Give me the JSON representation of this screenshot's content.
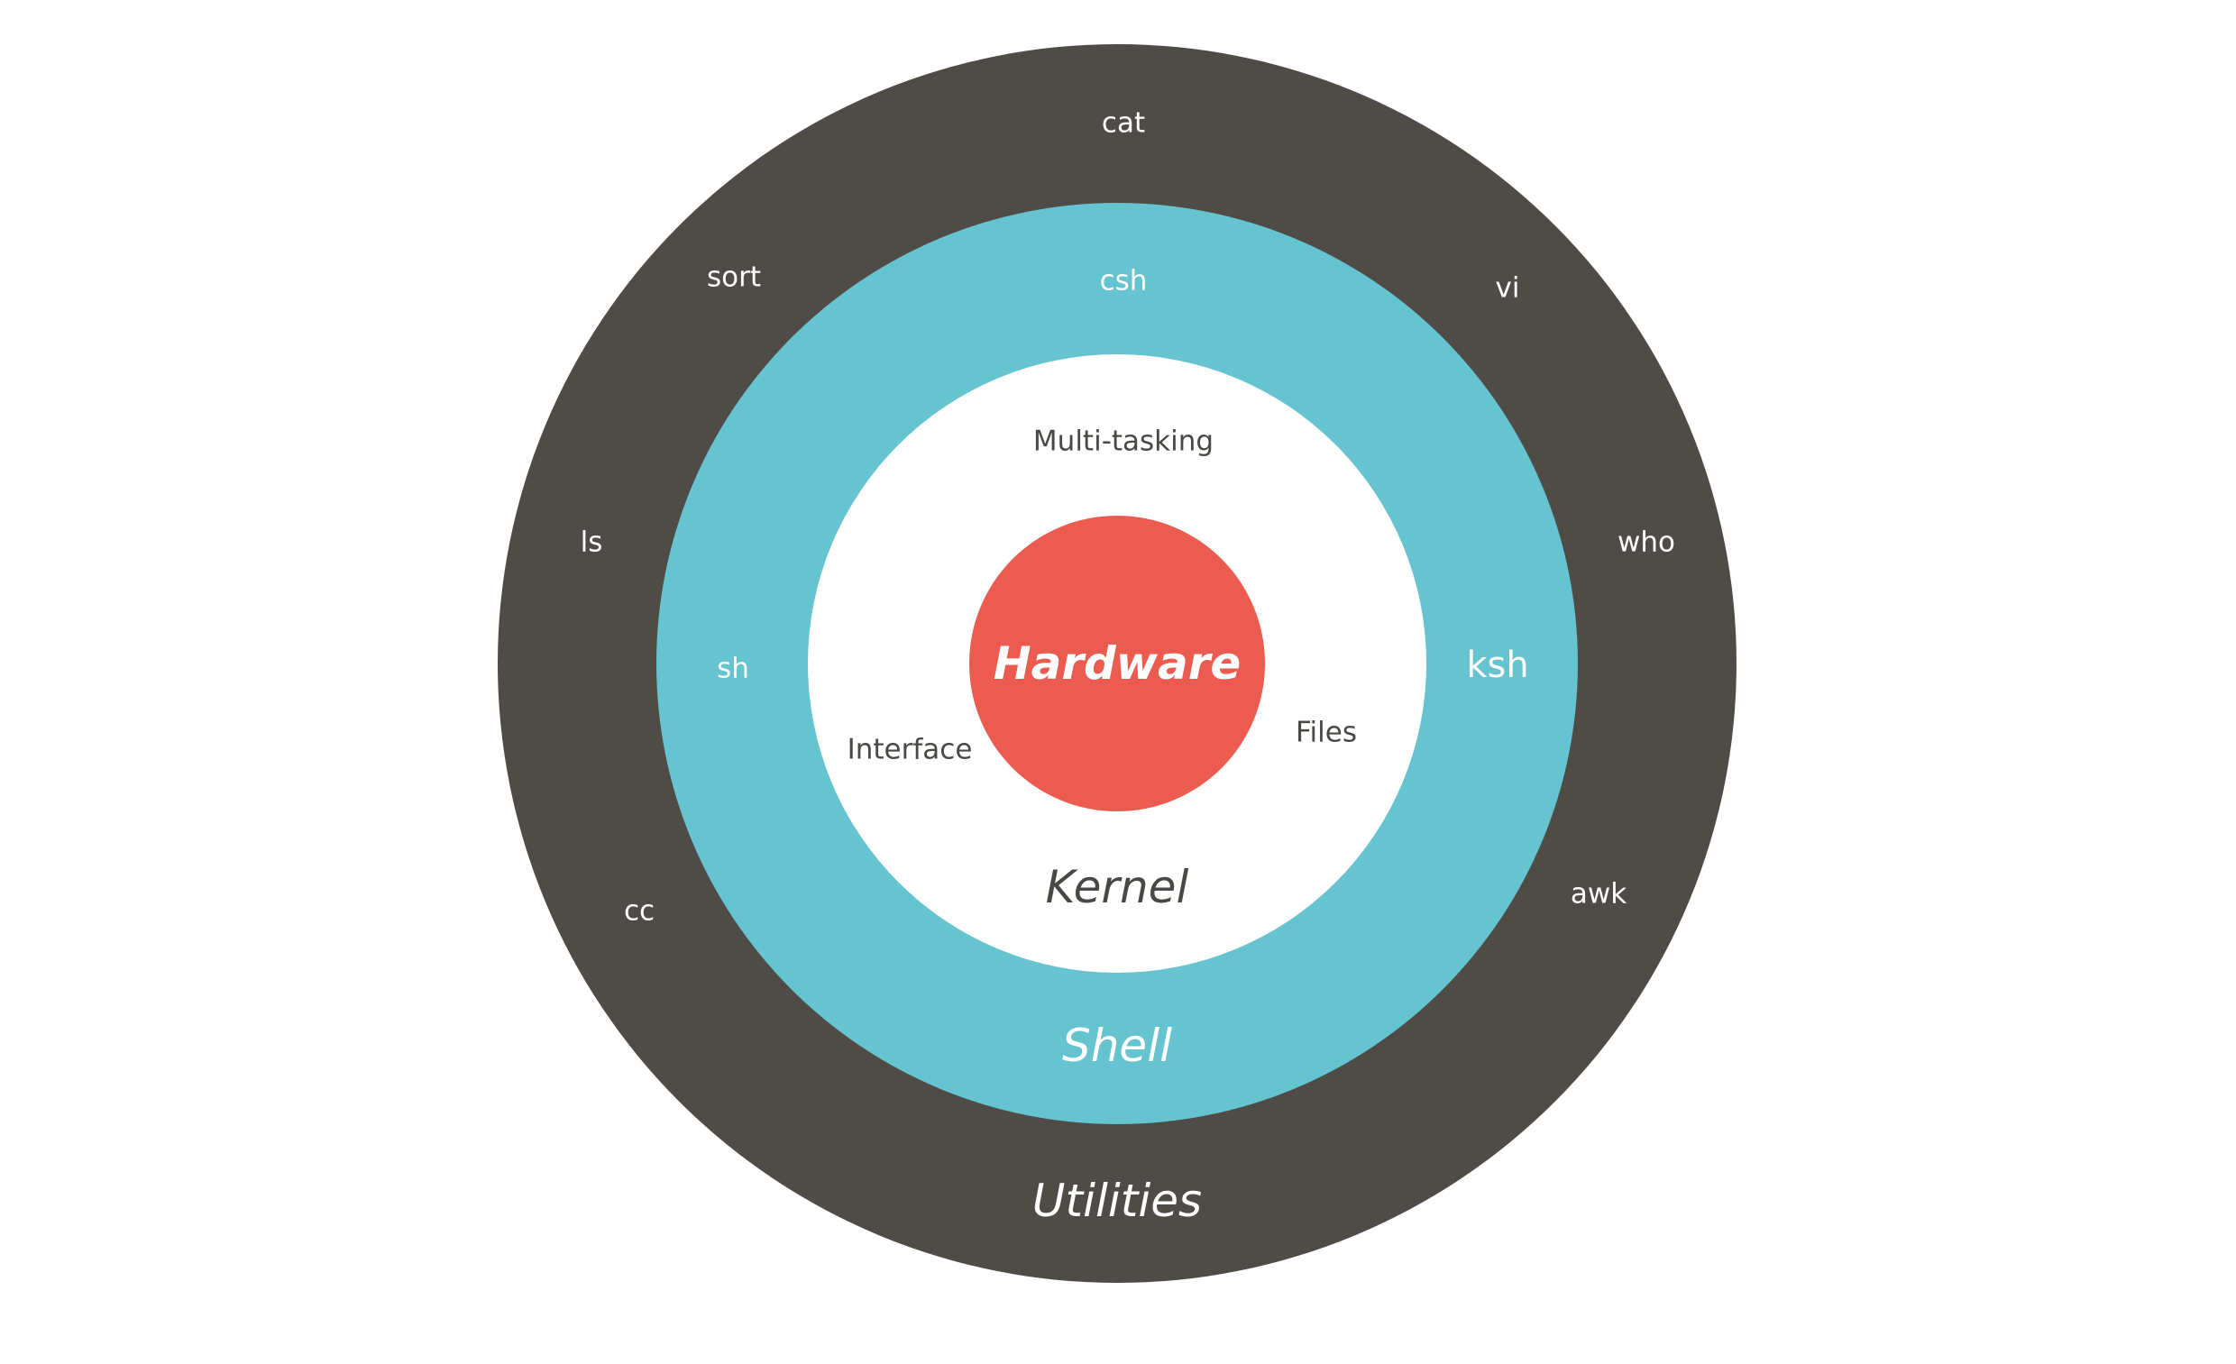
{
  "colors": {
    "utilities_ring": "#4f4c48",
    "shell_ring": "#66c3d0",
    "kernel_ring": "#ffffff",
    "hardware_core": "#eb5b4f",
    "light_text": "#ffffff",
    "dark_text": "#4a4844"
  },
  "layers": {
    "utilities": {
      "label": "Utilities",
      "items": [
        "cat",
        "vi",
        "who",
        "awk",
        "cc",
        "ls",
        "sort"
      ]
    },
    "shell": {
      "label": "Shell",
      "items": [
        "csh",
        "ksh",
        "sh"
      ]
    },
    "kernel": {
      "label": "Kernel",
      "items": [
        "Multi-tasking",
        "Files",
        "Interface"
      ]
    },
    "hardware": {
      "label": "Hardware"
    }
  }
}
